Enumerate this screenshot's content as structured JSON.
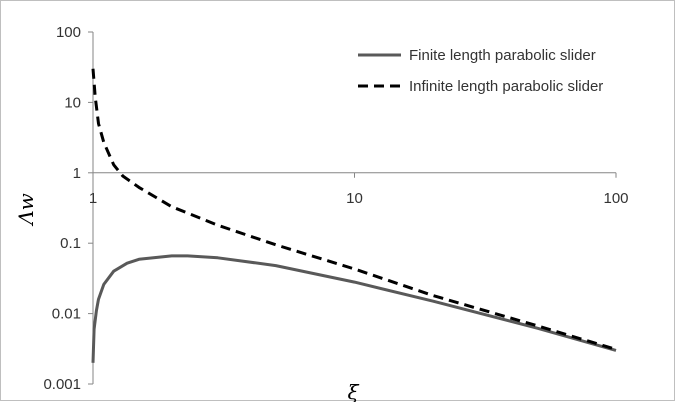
{
  "chart_data": {
    "type": "line",
    "x_scale": "log",
    "y_scale": "log",
    "xlim": [
      1,
      100
    ],
    "ylim": [
      0.001,
      100
    ],
    "xlabel": "ξ",
    "ylabel": "Λw",
    "x_ticks": [
      "1",
      "10",
      "100"
    ],
    "y_ticks": [
      "100",
      "10",
      "1",
      "0.1",
      "0.01",
      "0.001"
    ],
    "grid": "none",
    "legend_position": "top-right",
    "series": [
      {
        "name": "Finite length parabolic slider",
        "style": "solid",
        "color": "#595959",
        "x": [
          1.0,
          1.01,
          1.03,
          1.05,
          1.1,
          1.2,
          1.35,
          1.5,
          2.0,
          2.3,
          3.0,
          5.0,
          10,
          20,
          50,
          100
        ],
        "y": [
          0.002,
          0.006,
          0.011,
          0.016,
          0.026,
          0.04,
          0.052,
          0.059,
          0.066,
          0.066,
          0.062,
          0.048,
          0.028,
          0.015,
          0.0062,
          0.003
        ]
      },
      {
        "name": "Infinite length parabolic slider",
        "style": "dashed",
        "color": "#000000",
        "x": [
          1.0,
          1.02,
          1.05,
          1.1,
          1.2,
          1.3,
          1.5,
          2.0,
          3.0,
          5.0,
          10,
          20,
          50,
          100
        ],
        "y": [
          30,
          12,
          5,
          2.7,
          1.3,
          0.9,
          0.62,
          0.33,
          0.18,
          0.095,
          0.043,
          0.018,
          0.0067,
          0.0031
        ]
      }
    ]
  }
}
